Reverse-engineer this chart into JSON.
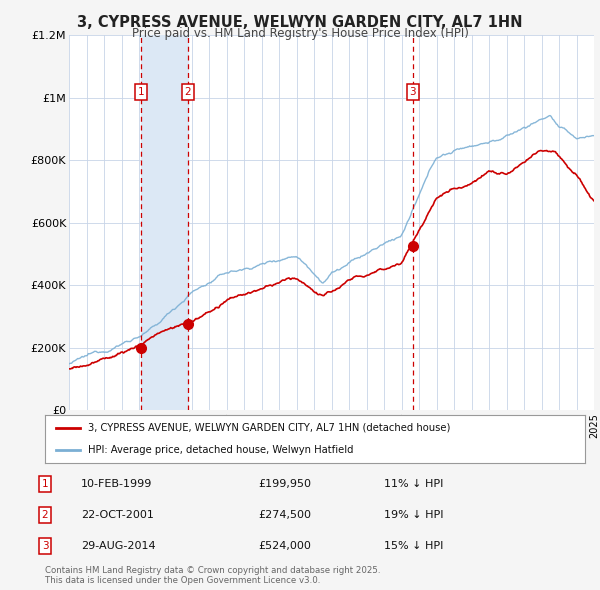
{
  "title": "3, CYPRESS AVENUE, WELWYN GARDEN CITY, AL7 1HN",
  "subtitle": "Price paid vs. HM Land Registry's House Price Index (HPI)",
  "red_label": "3, CYPRESS AVENUE, WELWYN GARDEN CITY, AL7 1HN (detached house)",
  "blue_label": "HPI: Average price, detached house, Welwyn Hatfield",
  "x_start_year": 1995,
  "x_end_year": 2025,
  "y_max": 1200000,
  "y_ticks": [
    0,
    200000,
    400000,
    600000,
    800000,
    1000000,
    1200000
  ],
  "y_tick_labels": [
    "£0",
    "£200K",
    "£400K",
    "£600K",
    "£800K",
    "£1M",
    "£1.2M"
  ],
  "transactions": [
    {
      "num": 1,
      "date": "10-FEB-1999",
      "price": 199950,
      "pct": "11%",
      "year": 1999.1
    },
    {
      "num": 2,
      "date": "22-OCT-2001",
      "price": 274500,
      "pct": "19%",
      "year": 2001.8
    },
    {
      "num": 3,
      "date": "29-AUG-2014",
      "price": 524000,
      "pct": "15%",
      "year": 2014.65
    }
  ],
  "background_color": "#f5f5f5",
  "plot_bg_color": "#ffffff",
  "grid_color": "#c8d4e8",
  "red_color": "#cc0000",
  "blue_color": "#7bafd4",
  "shade_color": "#dce8f5",
  "footnote": "Contains HM Land Registry data © Crown copyright and database right 2025.\nThis data is licensed under the Open Government Licence v3.0."
}
